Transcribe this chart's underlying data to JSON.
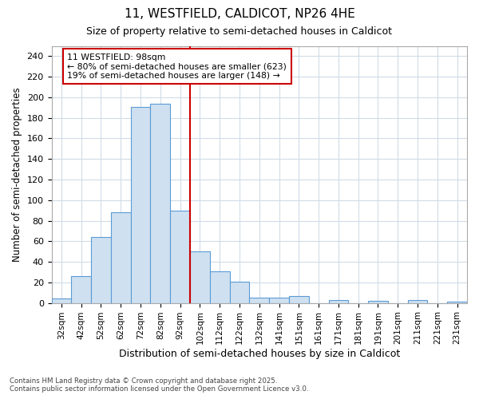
{
  "title1": "11, WESTFIELD, CALDICOT, NP26 4HE",
  "title2": "Size of property relative to semi-detached houses in Caldicot",
  "xlabel": "Distribution of semi-detached houses by size in Caldicot",
  "ylabel": "Number of semi-detached properties",
  "bar_labels": [
    "32sqm",
    "42sqm",
    "52sqm",
    "62sqm",
    "72sqm",
    "82sqm",
    "92sqm",
    "102sqm",
    "112sqm",
    "122sqm",
    "132sqm",
    "141sqm",
    "151sqm",
    "161sqm",
    "171sqm",
    "181sqm",
    "191sqm",
    "201sqm",
    "211sqm",
    "221sqm",
    "231sqm"
  ],
  "bar_values": [
    4,
    26,
    64,
    88,
    191,
    194,
    90,
    50,
    31,
    21,
    5,
    5,
    7,
    0,
    3,
    0,
    2,
    0,
    3,
    0,
    1
  ],
  "bar_color": "#cfe0f0",
  "bar_edge_color": "#5b9bd5",
  "vline_color": "#cc0000",
  "annotation_text": "11 WESTFIELD: 98sqm\n← 80% of semi-detached houses are smaller (623)\n19% of semi-detached houses are larger (148) →",
  "box_facecolor": "white",
  "box_edgecolor": "#cc0000",
  "ylim": [
    0,
    250
  ],
  "yticks": [
    0,
    20,
    40,
    60,
    80,
    100,
    120,
    140,
    160,
    180,
    200,
    220,
    240
  ],
  "background_color": "#ffffff",
  "grid_color": "#d0dce8",
  "footer_line1": "Contains HM Land Registry data © Crown copyright and database right 2025.",
  "footer_line2": "Contains public sector information licensed under the Open Government Licence v3.0."
}
